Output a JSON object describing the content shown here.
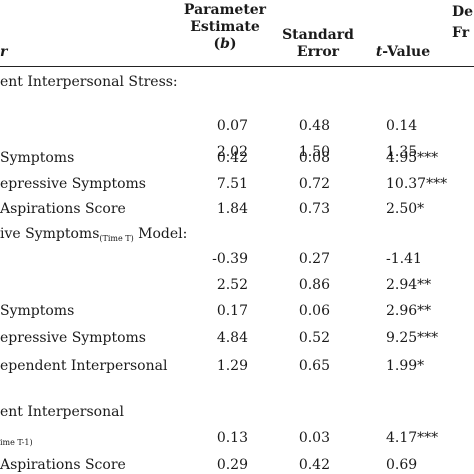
{
  "header": {
    "predictor_tail": "r",
    "param_line1": "Parameter",
    "param_line2": "Estimate",
    "param_line3_open": "(",
    "param_line3_b": "b",
    "param_line3_close": ")",
    "se_line1": "Standard",
    "se_line2": "Error",
    "t_label_t": "t",
    "t_label_rest": "-Value",
    "df_line1": "De",
    "df_line2": "Fr"
  },
  "rows": [
    {
      "label": "ent Interpersonal Stress:",
      "est": "",
      "se": "",
      "t": ""
    },
    {
      "label": "",
      "est": "0.07",
      "se": "0.48",
      "t": "0.14"
    },
    {
      "label": "",
      "est": "2.02",
      "se": "1.50",
      "t": "1.35"
    },
    {
      "label": "Symptoms",
      "est": "0.42",
      "se": "0.08",
      "t": "4.95***"
    },
    {
      "label": "epressive Symptoms",
      "est": "7.51",
      "se": "0.72",
      "t": "10.37***"
    },
    {
      "label": "Aspirations Score",
      "est": "1.84",
      "se": "0.73",
      "t": "2.50*"
    },
    {
      "label": "ive Symptoms",
      "label_sub": "(Time T)",
      "label_after": " Model:",
      "est": "",
      "se": "",
      "t": ""
    },
    {
      "label": "",
      "est": "-0.39",
      "se": "0.27",
      "t": "-1.41"
    },
    {
      "label": "",
      "est": "2.52",
      "se": "0.86",
      "t": "2.94**"
    },
    {
      "label": "Symptoms",
      "est": "0.17",
      "se": "0.06",
      "t": "2.96**"
    },
    {
      "label": "epressive Symptoms",
      "est": "4.84",
      "se": "0.52",
      "t": "9.25***"
    },
    {
      "label": "ependent Interpersonal",
      "est": "1.29",
      "se": "0.65",
      "t": "1.99*"
    },
    {
      "label": "ent Interpersonal",
      "est": "",
      "se": "",
      "t": ""
    },
    {
      "label": "",
      "label_sub": "ime T-1)",
      "est": "0.13",
      "se": "0.03",
      "t": "4.17***"
    },
    {
      "label": "Aspirations Score",
      "est": "0.29",
      "se": "0.42",
      "t": "0.69"
    }
  ]
}
